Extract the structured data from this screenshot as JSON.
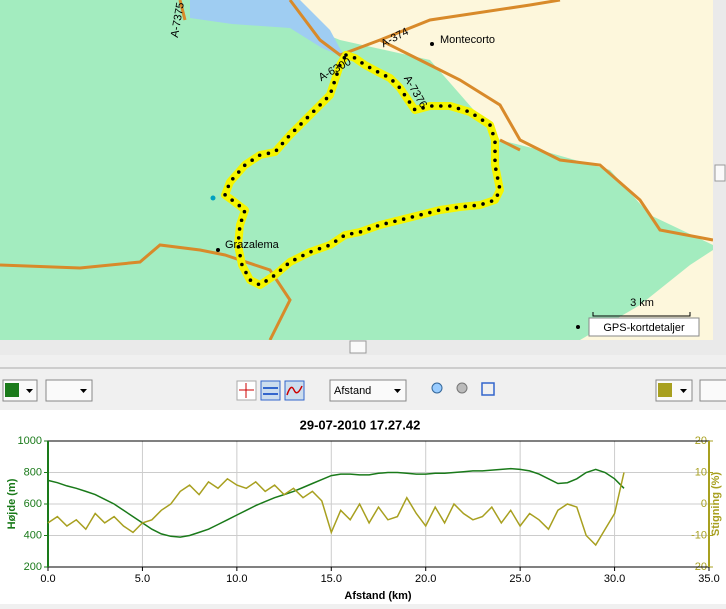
{
  "map": {
    "roads": [
      "A-7375",
      "A-374",
      "A-6300",
      "A-7376"
    ],
    "places": [
      "Montecorto",
      "Grazalema"
    ],
    "scale": "3 km",
    "details_button": "GPS-kortdetaljer"
  },
  "toolbar": {
    "x_mode": "Afstand"
  },
  "chart_data": {
    "type": "line",
    "title": "29-07-2010 17.27.42",
    "xlabel": "Afstand (km)",
    "ylabel": "Højde (m)",
    "y2label": "Stigning (%)",
    "x": [
      0,
      0.5,
      1,
      1.5,
      2,
      2.5,
      3,
      3.5,
      4,
      4.5,
      5,
      5.5,
      6,
      6.5,
      7,
      7.5,
      8,
      8.5,
      9,
      9.5,
      10,
      10.5,
      11,
      11.5,
      12,
      12.5,
      13,
      13.5,
      14,
      14.5,
      15,
      15.5,
      16,
      16.5,
      17,
      17.5,
      18,
      18.5,
      19,
      19.5,
      20,
      20.5,
      21,
      21.5,
      22,
      22.5,
      23,
      23.5,
      24,
      24.5,
      25,
      25.5,
      26,
      26.5,
      27,
      27.5,
      28,
      28.5,
      29,
      29.5,
      30,
      30.5
    ],
    "series": [
      {
        "name": "Højde",
        "color": "#1a7a1a",
        "values": [
          750,
          735,
          715,
          700,
          680,
          660,
          630,
          600,
          560,
          520,
          480,
          440,
          410,
          395,
          390,
          400,
          420,
          440,
          470,
          500,
          530,
          560,
          590,
          615,
          640,
          660,
          680,
          705,
          730,
          755,
          780,
          790,
          790,
          785,
          785,
          795,
          800,
          800,
          795,
          790,
          790,
          795,
          795,
          800,
          805,
          810,
          810,
          815,
          820,
          825,
          820,
          810,
          790,
          760,
          730,
          735,
          760,
          800,
          820,
          800,
          760,
          700
        ]
      },
      {
        "name": "Stigning",
        "color": "#a8a020",
        "axis": "y2",
        "values": [
          -6,
          -4,
          -7,
          -5,
          -8,
          -3,
          -6,
          -4,
          -7,
          -9,
          -6,
          -5,
          -2,
          0,
          4,
          6,
          3,
          7,
          5,
          8,
          6,
          5,
          7,
          4,
          6,
          3,
          5,
          2,
          4,
          1,
          -9,
          -2,
          -5,
          0,
          -6,
          -1,
          -5,
          -4,
          2,
          -3,
          -7,
          -1,
          -6,
          0,
          -3,
          -5,
          -4,
          -1,
          -6,
          -2,
          -7,
          -3,
          -5,
          -8,
          -2,
          0,
          -1,
          -10,
          -13,
          -8,
          -3,
          10
        ]
      }
    ],
    "xlim": [
      0,
      35
    ],
    "xticks": [
      {
        "value": 0,
        "label": "0.0"
      },
      {
        "value": 5,
        "label": "5.0"
      },
      {
        "value": 10,
        "label": "10.0"
      },
      {
        "value": 15,
        "label": "15.0"
      },
      {
        "value": 20,
        "label": "20.0"
      },
      {
        "value": 25,
        "label": "25.0"
      },
      {
        "value": 30,
        "label": "30.0"
      },
      {
        "value": 35,
        "label": "35.0"
      }
    ],
    "ylim": [
      200,
      1000
    ],
    "yticks": [
      200,
      400,
      600,
      800,
      1000
    ],
    "y2lim": [
      -20,
      20
    ],
    "y2ticks": [
      -20,
      -10,
      0,
      10,
      20
    ],
    "grid": true
  }
}
